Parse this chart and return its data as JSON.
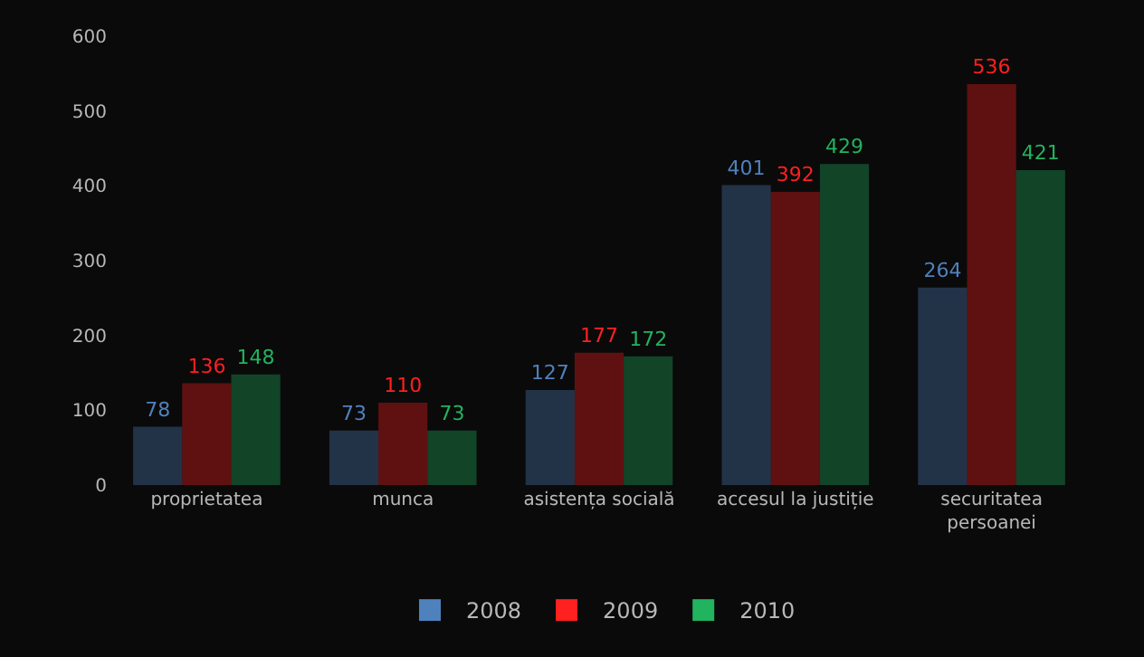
{
  "chart_data": {
    "type": "bar",
    "categories": [
      "proprietatea",
      "munca",
      "asistența socială",
      "accesul la justiție",
      "securitatea persoanei"
    ],
    "series": [
      {
        "name": "2008",
        "color": "#4f81bd",
        "values": [
          78,
          73,
          127,
          401,
          264
        ]
      },
      {
        "name": "2009",
        "color": "#ff2020",
        "values": [
          136,
          110,
          177,
          392,
          536
        ]
      },
      {
        "name": "2010",
        "color": "#22b35e",
        "values": [
          148,
          73,
          172,
          429,
          421
        ]
      }
    ],
    "ylim": [
      0,
      600
    ],
    "yticks": [
      0,
      100,
      200,
      300,
      400,
      500,
      600
    ],
    "legend": "bottom",
    "data_labels": true
  }
}
